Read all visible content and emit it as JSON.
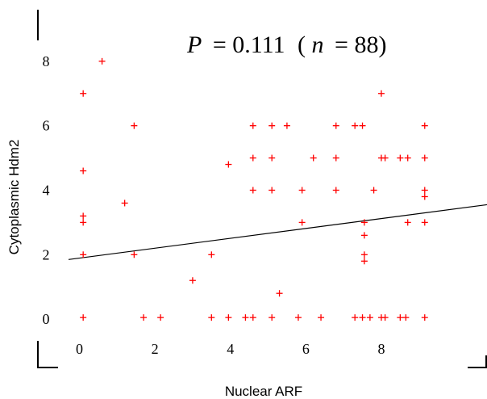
{
  "chart_data": {
    "type": "scatter",
    "title": "",
    "annotation": {
      "p_label": "P",
      "p_value": "= 0.111",
      "n_open": "(",
      "n_label": "n",
      "n_value": "= 88)"
    },
    "xlabel": "Nuclear ARF",
    "ylabel": "Cytoplasmic Hdm2",
    "xlim": [
      -1.1,
      10.8
    ],
    "ylim": [
      -1.5,
      9.9
    ],
    "xticks": [
      "0",
      "2",
      "4",
      "6",
      "8"
    ],
    "xtick_values": [
      0,
      2,
      4,
      6,
      8
    ],
    "yticks": [
      "0",
      "2",
      "4",
      "6",
      "8"
    ],
    "ytick_values": [
      0,
      2,
      4,
      6,
      8
    ],
    "marker_color": "#ff0000",
    "line_color": "#000000",
    "grid": false,
    "legend": "none",
    "trend_line": {
      "x": [
        -1.1,
        10.8
      ],
      "y": [
        1.85,
        3.55
      ]
    },
    "points": [
      {
        "x": 0.1,
        "y": 0.05
      },
      {
        "x": 0.1,
        "y": 2.0
      },
      {
        "x": 0.1,
        "y": 3.0
      },
      {
        "x": 0.1,
        "y": 3.2
      },
      {
        "x": 0.1,
        "y": 4.6
      },
      {
        "x": 0.1,
        "y": 7.0
      },
      {
        "x": 0.6,
        "y": 8.0
      },
      {
        "x": 1.2,
        "y": 3.6
      },
      {
        "x": 1.45,
        "y": 6.0
      },
      {
        "x": 1.45,
        "y": 2.0
      },
      {
        "x": 1.7,
        "y": 0.05
      },
      {
        "x": 2.15,
        "y": 0.05
      },
      {
        "x": 3.0,
        "y": 1.2
      },
      {
        "x": 3.5,
        "y": 0.05
      },
      {
        "x": 3.5,
        "y": 2.0
      },
      {
        "x": 3.95,
        "y": 0.05
      },
      {
        "x": 3.95,
        "y": 4.8
      },
      {
        "x": 4.4,
        "y": 0.05
      },
      {
        "x": 4.6,
        "y": 0.05
      },
      {
        "x": 4.6,
        "y": 4.0
      },
      {
        "x": 4.6,
        "y": 5.0
      },
      {
        "x": 4.6,
        "y": 6.0
      },
      {
        "x": 5.1,
        "y": 0.05
      },
      {
        "x": 5.1,
        "y": 4.0
      },
      {
        "x": 5.1,
        "y": 5.0
      },
      {
        "x": 5.1,
        "y": 6.0
      },
      {
        "x": 5.3,
        "y": 0.8
      },
      {
        "x": 5.5,
        "y": 6.0
      },
      {
        "x": 5.8,
        "y": 0.05
      },
      {
        "x": 5.9,
        "y": 3.0
      },
      {
        "x": 5.9,
        "y": 4.0
      },
      {
        "x": 6.2,
        "y": 5.0
      },
      {
        "x": 6.4,
        "y": 0.05
      },
      {
        "x": 6.8,
        "y": 4.0
      },
      {
        "x": 6.8,
        "y": 5.0
      },
      {
        "x": 6.8,
        "y": 6.0
      },
      {
        "x": 7.3,
        "y": 0.05
      },
      {
        "x": 7.3,
        "y": 6.0
      },
      {
        "x": 7.5,
        "y": 0.05
      },
      {
        "x": 7.5,
        "y": 6.0
      },
      {
        "x": 7.55,
        "y": 1.8
      },
      {
        "x": 7.55,
        "y": 2.0
      },
      {
        "x": 7.55,
        "y": 2.6
      },
      {
        "x": 7.55,
        "y": 3.0
      },
      {
        "x": 7.7,
        "y": 0.05
      },
      {
        "x": 7.8,
        "y": 4.0
      },
      {
        "x": 8.0,
        "y": 0.05
      },
      {
        "x": 8.0,
        "y": 5.0
      },
      {
        "x": 8.0,
        "y": 7.0
      },
      {
        "x": 8.1,
        "y": 0.05
      },
      {
        "x": 8.1,
        "y": 5.0
      },
      {
        "x": 8.5,
        "y": 0.05
      },
      {
        "x": 8.5,
        "y": 5.0
      },
      {
        "x": 8.65,
        "y": 0.05
      },
      {
        "x": 8.7,
        "y": 3.0
      },
      {
        "x": 8.7,
        "y": 5.0
      },
      {
        "x": 9.15,
        "y": 0.05
      },
      {
        "x": 9.15,
        "y": 3.0
      },
      {
        "x": 9.15,
        "y": 3.8
      },
      {
        "x": 9.15,
        "y": 4.0
      },
      {
        "x": 9.15,
        "y": 5.0
      },
      {
        "x": 9.15,
        "y": 6.0
      }
    ]
  }
}
